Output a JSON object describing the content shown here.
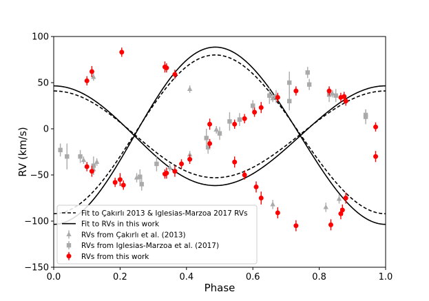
{
  "chart_data": {
    "type": "scatter",
    "title": "",
    "xlabel": "Phase",
    "ylabel": "RV (km/s)",
    "xlim": [
      0.0,
      1.0
    ],
    "ylim": [
      -150,
      100
    ],
    "xticks": [
      0.0,
      0.2,
      0.4,
      0.6,
      0.8,
      1.0
    ],
    "xtick_labels": [
      "0.0",
      "0.2",
      "0.4",
      "0.6",
      "0.8",
      "1.0"
    ],
    "yticks": [
      -150,
      -100,
      -50,
      0,
      50,
      100
    ],
    "ytick_labels": [
      "−150",
      "−100",
      "−50",
      "0",
      "50",
      "100"
    ],
    "grid": false,
    "legend_position": "bottom-left",
    "legend": [
      {
        "label": "Fit to Çakırlı 2013 & Iglesias-Marzoa 2017 RVs",
        "kind": "dashed-line",
        "color": "#000000"
      },
      {
        "label": "Fit to RVs in this work",
        "kind": "solid-line",
        "color": "#000000"
      },
      {
        "label": "RVs from Çakırlı et al. (2013)",
        "kind": "triangle",
        "color": "#aaaaaa"
      },
      {
        "label": "RVs from Iglesias-Marzoa et al. (2017)",
        "kind": "square",
        "color": "#aaaaaa"
      },
      {
        "label": "RVs from this work",
        "kind": "circle",
        "color": "#ff0000"
      }
    ],
    "models": {
      "dashed": {
        "gamma": -6,
        "K1": 86,
        "K2": 47,
        "e": 0.02,
        "omega_deg": 90,
        "T0": 0.243
      },
      "solid": {
        "gamma": -7.5,
        "K1": 96,
        "K2": 54,
        "e": 0.02,
        "omega_deg": 90,
        "T0": 0.243
      }
    },
    "series": [
      {
        "name": "RVs from this work",
        "marker": "circle",
        "color": "#ff0000",
        "points": [
          {
            "x": 0.1,
            "y": 52,
            "err": 5
          },
          {
            "x": 0.115,
            "y": 62,
            "err": 6
          },
          {
            "x": 0.205,
            "y": 83,
            "err": 5
          },
          {
            "x": 0.335,
            "y": 67,
            "err": 6
          },
          {
            "x": 0.34,
            "y": 66,
            "err": 5
          },
          {
            "x": 0.365,
            "y": 59,
            "err": 5
          },
          {
            "x": 0.47,
            "y": 5,
            "err": 6
          },
          {
            "x": 0.545,
            "y": -36,
            "err": 6
          },
          {
            "x": 0.575,
            "y": -50,
            "err": 5
          },
          {
            "x": 0.61,
            "y": -63,
            "err": 6
          },
          {
            "x": 0.625,
            "y": -75,
            "err": 7
          },
          {
            "x": 0.675,
            "y": -91,
            "err": 6
          },
          {
            "x": 0.73,
            "y": -105,
            "err": 6
          },
          {
            "x": 0.835,
            "y": -104,
            "err": 6
          },
          {
            "x": 0.865,
            "y": -92,
            "err": 6
          },
          {
            "x": 0.87,
            "y": -88,
            "err": 6
          },
          {
            "x": 0.88,
            "y": -75,
            "err": 6
          },
          {
            "x": 0.97,
            "y": -30,
            "err": 6
          },
          {
            "x": 0.1,
            "y": -41,
            "err": 5
          },
          {
            "x": 0.115,
            "y": -46,
            "err": 6
          },
          {
            "x": 0.185,
            "y": -58,
            "err": 5
          },
          {
            "x": 0.2,
            "y": -55,
            "err": 7
          },
          {
            "x": 0.21,
            "y": -61,
            "err": 5
          },
          {
            "x": 0.335,
            "y": -49,
            "err": 5
          },
          {
            "x": 0.34,
            "y": -48,
            "err": 6
          },
          {
            "x": 0.365,
            "y": -46,
            "err": 6
          },
          {
            "x": 0.385,
            "y": -38,
            "err": 5
          },
          {
            "x": 0.41,
            "y": -33,
            "err": 5
          },
          {
            "x": 0.47,
            "y": -16,
            "err": 5
          },
          {
            "x": 0.545,
            "y": 5,
            "err": 5
          },
          {
            "x": 0.575,
            "y": 11,
            "err": 5
          },
          {
            "x": 0.605,
            "y": 18,
            "err": 5
          },
          {
            "x": 0.625,
            "y": 23,
            "err": 6
          },
          {
            "x": 0.675,
            "y": 34,
            "err": 5
          },
          {
            "x": 0.73,
            "y": 41,
            "err": 5
          },
          {
            "x": 0.83,
            "y": 41,
            "err": 5
          },
          {
            "x": 0.865,
            "y": 34,
            "err": 5
          },
          {
            "x": 0.875,
            "y": 35,
            "err": 5
          },
          {
            "x": 0.88,
            "y": 30,
            "err": 5
          },
          {
            "x": 0.97,
            "y": 2,
            "err": 5
          }
        ]
      },
      {
        "name": "RVs from Çakırlı et al. (2013)",
        "marker": "triangle",
        "color": "#aaaaaa",
        "points": [
          {
            "x": 0.09,
            "y": -34,
            "err": 4
          },
          {
            "x": 0.12,
            "y": -44,
            "err": 5
          },
          {
            "x": 0.13,
            "y": -36,
            "err": 4
          },
          {
            "x": 0.25,
            "y": -53,
            "err": 5
          },
          {
            "x": 0.35,
            "y": -42,
            "err": 4
          },
          {
            "x": 0.41,
            "y": -28,
            "err": 4
          },
          {
            "x": 0.49,
            "y": -1,
            "err": 4
          },
          {
            "x": 0.41,
            "y": 43,
            "err": 4
          },
          {
            "x": 0.49,
            "y": -1,
            "err": 4
          },
          {
            "x": 0.66,
            "y": -82,
            "err": 5
          },
          {
            "x": 0.82,
            "y": -85,
            "err": 5
          },
          {
            "x": 0.86,
            "y": -76,
            "err": 5
          },
          {
            "x": 0.84,
            "y": 38,
            "err": 4
          },
          {
            "x": 0.66,
            "y": 33,
            "err": 4
          },
          {
            "x": 0.12,
            "y": 56,
            "err": 4
          }
        ]
      },
      {
        "name": "RVs from Iglesias-Marzoa et al. (2017)",
        "marker": "square",
        "color": "#aaaaaa",
        "points": [
          {
            "x": 0.02,
            "y": -23,
            "err": 7
          },
          {
            "x": 0.04,
            "y": -30,
            "err": 14
          },
          {
            "x": 0.08,
            "y": -30,
            "err": 7
          },
          {
            "x": 0.12,
            "y": -40,
            "err": 10
          },
          {
            "x": 0.26,
            "y": -52,
            "err": 8
          },
          {
            "x": 0.265,
            "y": -60,
            "err": 7
          },
          {
            "x": 0.31,
            "y": -38,
            "err": 8
          },
          {
            "x": 0.46,
            "y": -10,
            "err": 10
          },
          {
            "x": 0.465,
            "y": -20,
            "err": 7
          },
          {
            "x": 0.5,
            "y": -5,
            "err": 7
          },
          {
            "x": 0.53,
            "y": 8,
            "err": 10
          },
          {
            "x": 0.56,
            "y": 10,
            "err": 7
          },
          {
            "x": 0.6,
            "y": 25,
            "err": 6
          },
          {
            "x": 0.65,
            "y": 36,
            "err": 9
          },
          {
            "x": 0.67,
            "y": 35,
            "err": 7
          },
          {
            "x": 0.71,
            "y": 50,
            "err": 12
          },
          {
            "x": 0.71,
            "y": 30,
            "err": 10
          },
          {
            "x": 0.765,
            "y": 61,
            "err": 6
          },
          {
            "x": 0.77,
            "y": 48,
            "err": 6
          },
          {
            "x": 0.83,
            "y": 37,
            "err": 8
          },
          {
            "x": 0.85,
            "y": 36,
            "err": 7
          },
          {
            "x": 0.94,
            "y": 13,
            "err": 8
          },
          {
            "x": 0.94,
            "y": 15,
            "err": 6
          }
        ]
      }
    ]
  }
}
